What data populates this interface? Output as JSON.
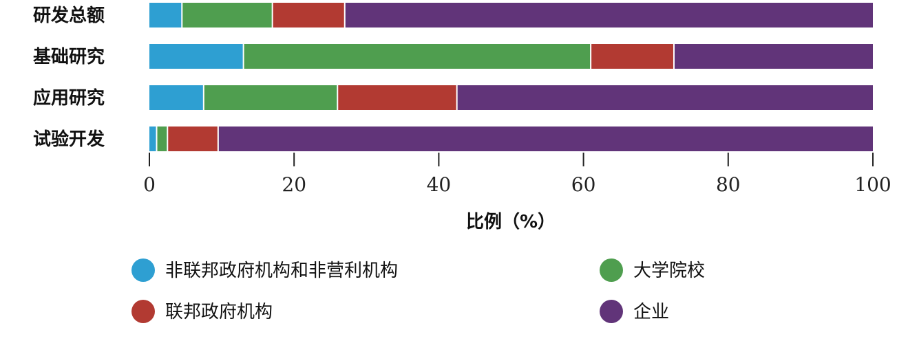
{
  "chart_data": {
    "type": "bar",
    "orientation": "horizontal",
    "stacked": true,
    "categories": [
      "研发总额",
      "基础研究",
      "应用研究",
      "试验开发"
    ],
    "series": [
      {
        "name": "非联邦政府机构和非营利机构",
        "color": "#2e9fd2",
        "values": [
          4.5,
          13,
          7.5,
          1
        ]
      },
      {
        "name": "大学院校",
        "color": "#4f9e4f",
        "values": [
          12.5,
          48,
          18.5,
          1.5
        ]
      },
      {
        "name": "联邦政府机构",
        "color": "#b23a32",
        "values": [
          10,
          11.5,
          16.5,
          7
        ]
      },
      {
        "name": "企业",
        "color": "#613479",
        "values": [
          73,
          27.5,
          57.5,
          90.5
        ]
      }
    ],
    "xlabel": "比例（%）",
    "xlim": [
      0,
      100
    ],
    "xticks": [
      "0",
      "20",
      "40",
      "60",
      "80",
      "100"
    ],
    "grid": false,
    "legend_position": "bottom"
  }
}
